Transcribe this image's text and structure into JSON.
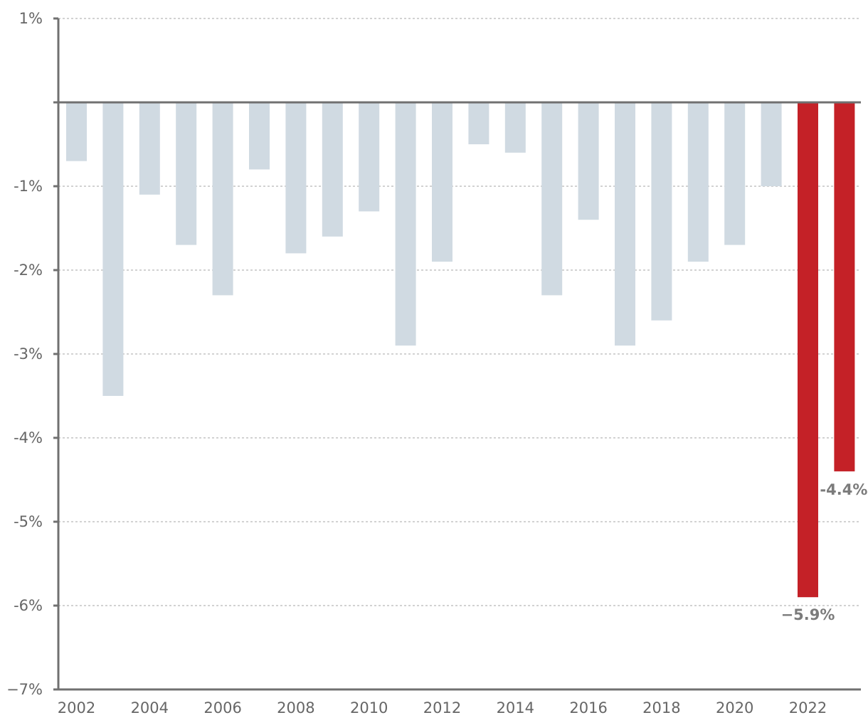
{
  "chart_data": {
    "type": "bar",
    "title": "",
    "xlabel": "",
    "ylabel": "",
    "ylim": [
      -7,
      1
    ],
    "grid": true,
    "categories": [
      "2002",
      "2003",
      "2004",
      "2005",
      "2006",
      "2007",
      "2008",
      "2009",
      "2010",
      "2011",
      "2012",
      "2013",
      "2014",
      "2015",
      "2016",
      "2017",
      "2018",
      "2019",
      "2020",
      "2021",
      "2022",
      "2023"
    ],
    "values": [
      -0.7,
      -3.5,
      -1.1,
      -1.7,
      -2.3,
      -0.8,
      -1.8,
      -1.6,
      -1.3,
      -2.9,
      -1.9,
      -0.5,
      -0.6,
      -2.3,
      -1.4,
      -2.9,
      -2.6,
      -1.9,
      -1.7,
      -1.0,
      -5.9,
      -4.4
    ],
    "highlight_categories": [
      "2022",
      "2023"
    ],
    "x_tick_labels": [
      "2002",
      "2004",
      "2006",
      "2008",
      "2010",
      "2012",
      "2014",
      "2016",
      "2018",
      "2020",
      "2022"
    ],
    "y_ticks": [
      1,
      0,
      -1,
      -2,
      -3,
      -4,
      -5,
      -6,
      -7
    ],
    "y_tick_labels": [
      "1%",
      "",
      "-1%",
      "-2%",
      "-3%",
      "-4%",
      "-5%",
      "-6%",
      "−7%"
    ],
    "annotations": [
      {
        "category": "2022",
        "text": "−5.9%"
      },
      {
        "category": "2023",
        "text": "-4.4%"
      }
    ],
    "colors": {
      "bar": "#d0dae2",
      "highlight": "#c42127",
      "axis": "#707070",
      "grid": "#b7b7b7",
      "tick_text": "#666666",
      "label_text": "#7b7b7b"
    }
  }
}
